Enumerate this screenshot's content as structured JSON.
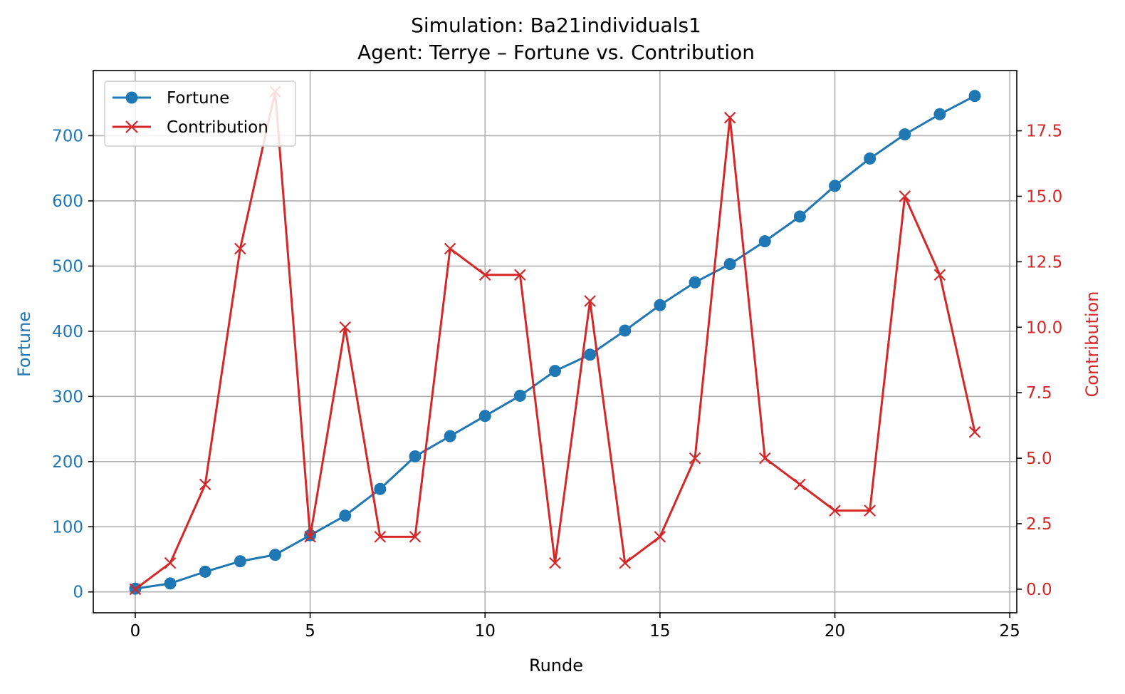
{
  "chart_data": {
    "type": "line",
    "title": "Simulation: Ba21individuals1",
    "subtitle": "Agent: Terrye – Fortune vs. Contribution",
    "xlabel": "Runde",
    "ylabel_left": "Fortune",
    "ylabel_right": "Contribution",
    "x": [
      0,
      1,
      2,
      3,
      4,
      5,
      6,
      7,
      8,
      9,
      10,
      11,
      12,
      13,
      14,
      15,
      16,
      17,
      18,
      19,
      20,
      21,
      22,
      23,
      24
    ],
    "xlim": [
      -1.2,
      25.2
    ],
    "xticks": [
      0,
      5,
      10,
      15,
      20,
      25
    ],
    "xtick_labels": [
      "0",
      "5",
      "10",
      "15",
      "20",
      "25"
    ],
    "ylim_left": [
      -32,
      800
    ],
    "yticks_left": [
      0,
      100,
      200,
      300,
      400,
      500,
      600,
      700
    ],
    "ytick_labels_left": [
      "0",
      "100",
      "200",
      "300",
      "400",
      "500",
      "600",
      "700"
    ],
    "ylim_right": [
      -0.9,
      19.8
    ],
    "yticks_right": [
      0,
      2.5,
      5,
      7.5,
      10,
      12.5,
      15,
      17.5
    ],
    "ytick_labels_right": [
      "0.0",
      "2.5",
      "5.0",
      "7.5",
      "10.0",
      "12.5",
      "15.0",
      "17.5"
    ],
    "grid": true,
    "legend_position": "top-left",
    "series": [
      {
        "name": "Fortune",
        "axis": "left",
        "color": "#1f77b4",
        "marker": "circle",
        "values": [
          5,
          13,
          31,
          47,
          57,
          87,
          117,
          158,
          208,
          239,
          270,
          301,
          339,
          364,
          401,
          440,
          475,
          503,
          538,
          576,
          623,
          665,
          702,
          733,
          761
        ]
      },
      {
        "name": "Contribution",
        "axis": "right",
        "color": "#d62728",
        "marker": "x",
        "values": [
          0,
          1,
          4,
          13,
          19,
          2,
          10,
          2,
          2,
          13,
          12,
          12,
          1,
          11,
          1,
          2,
          5,
          18,
          5,
          4,
          3,
          3,
          15,
          12,
          6
        ]
      }
    ]
  }
}
